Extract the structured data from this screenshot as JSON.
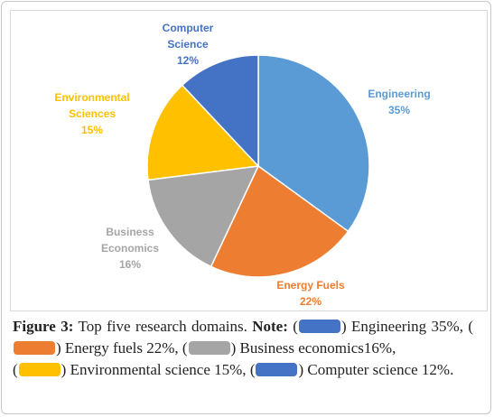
{
  "chart_data": {
    "type": "pie",
    "title": "",
    "slices": [
      {
        "name": "Engineering",
        "label_lines": [
          "Engineering"
        ],
        "value": 35,
        "value_label": "35%",
        "color": "#5b9bd5",
        "label_color": "#5b9bd5"
      },
      {
        "name": "Energy Fuels",
        "label_lines": [
          "Energy Fuels"
        ],
        "value": 22,
        "value_label": "22%",
        "color": "#ed7d31",
        "label_color": "#ed7d31"
      },
      {
        "name": "Business Economics",
        "label_lines": [
          "Business",
          "Economics"
        ],
        "value": 16,
        "value_label": "16%",
        "color": "#a5a5a5",
        "label_color": "#a5a5a5"
      },
      {
        "name": "Environmental Sciences",
        "label_lines": [
          "Environmental",
          "Sciences"
        ],
        "value": 15,
        "value_label": "15%",
        "color": "#ffc000",
        "label_color": "#ffc000"
      },
      {
        "name": "Computer Science",
        "label_lines": [
          "Computer",
          "Science"
        ],
        "value": 12,
        "value_label": "12%",
        "color": "#4472c4",
        "label_color": "#4472c4"
      }
    ]
  },
  "caption": {
    "figure_label": "Figure 3:",
    "text": " Top five research domains. ",
    "note_label": "Note:",
    "items": [
      {
        "open": " (",
        "close": ") ",
        "text": "Engineering 35%,",
        "color": "#4472c4"
      },
      {
        "open": " (",
        "close": ") ",
        "text": "Energy fuels 22%,",
        "color": "#ed7d31"
      },
      {
        "open": " (",
        "close": ") ",
        "text": "Business economics16%,",
        "color": "#a5a5a5"
      },
      {
        "open": " (",
        "close": ") ",
        "text": "Environmental science 15%,",
        "color": "#ffc000"
      },
      {
        "open": " (",
        "close": ") ",
        "text": "Computer science 12%.",
        "color": "#4472c4"
      }
    ]
  }
}
